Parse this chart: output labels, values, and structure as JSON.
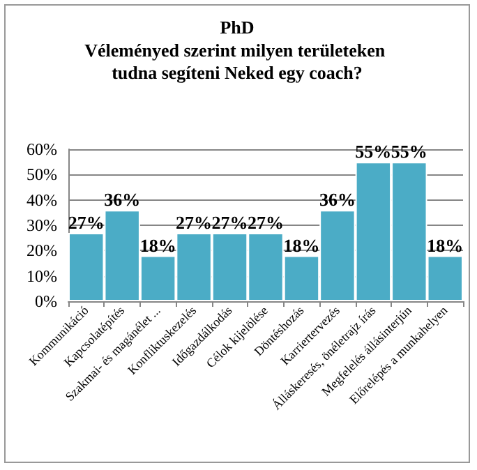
{
  "chart_data": {
    "type": "bar",
    "title": "PhD",
    "subtitle": "Véleményed szerint milyen területeken tudna segíteni Neked egy coach?",
    "categories": [
      "Kommunikáció",
      "Kapcsolatépítés",
      "Szakmai- és magánélet ...",
      "Konfliktuskezelés",
      "Időgazdálkodás",
      "Célok kijelölése",
      "Döntéshozás",
      "Karriertervezés",
      "Álláskeresés, önéletrajz írás",
      "Megfelelés állásinterjún",
      "Előrelépés a munkahelyen"
    ],
    "values": [
      27,
      36,
      18,
      27,
      27,
      27,
      18,
      36,
      55,
      55,
      18
    ],
    "value_labels": [
      "27%",
      "36%",
      "18%",
      "27%",
      "27%",
      "27%",
      "18%",
      "36%",
      "55%",
      "55%",
      "18%"
    ],
    "color": "#4bacc6",
    "ylim": [
      0,
      60
    ],
    "yticks": [
      {
        "value": 0,
        "label": "0%"
      },
      {
        "value": 10,
        "label": "10%"
      },
      {
        "value": 20,
        "label": "20%"
      },
      {
        "value": 30,
        "label": "30%"
      },
      {
        "value": 40,
        "label": "40%"
      },
      {
        "value": 50,
        "label": "50%"
      },
      {
        "value": 60,
        "label": "60%"
      }
    ],
    "grid": "y"
  }
}
